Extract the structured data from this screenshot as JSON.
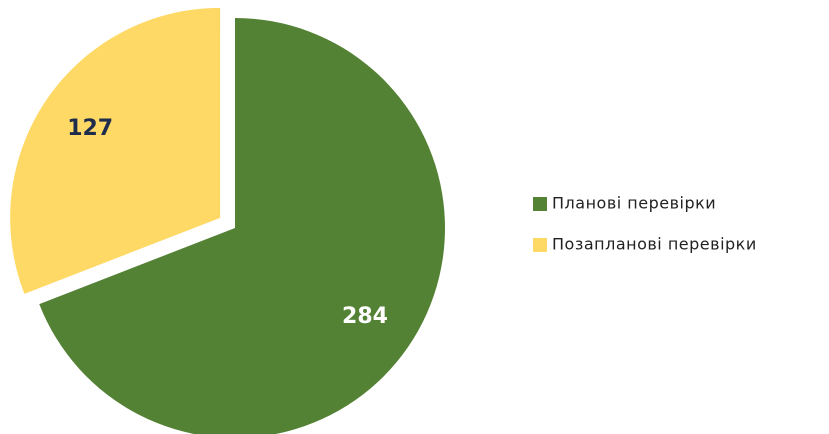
{
  "chart_data": {
    "type": "pie",
    "categories": [
      "Планові перевірки",
      "Позапланові перевірки"
    ],
    "values": [
      284,
      127
    ],
    "colors": [
      "#548235",
      "#ffd966"
    ]
  }
}
